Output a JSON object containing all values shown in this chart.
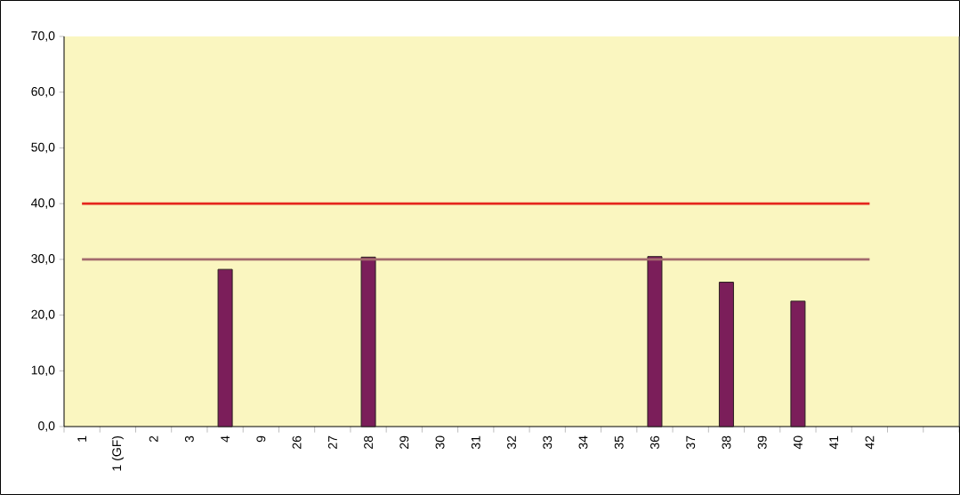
{
  "chart_data": {
    "type": "bar",
    "categories": [
      "1",
      "1 (GF)",
      "2",
      "3",
      "4",
      "9",
      "26",
      "27",
      "28",
      "29",
      "30",
      "31",
      "32",
      "33",
      "34",
      "35",
      "36",
      "37",
      "38",
      "39",
      "40",
      "41",
      "42",
      null,
      null
    ],
    "series": [
      {
        "color": "#7b1e5a",
        "values": [
          null,
          null,
          null,
          null,
          28.2,
          null,
          null,
          null,
          30.4,
          null,
          null,
          null,
          null,
          null,
          null,
          null,
          30.5,
          null,
          25.9,
          null,
          22.5,
          null,
          null,
          null,
          null
        ]
      },
      {
        "type": "line",
        "color": "#e5261c",
        "values": [
          40,
          40,
          40,
          40,
          40,
          40,
          40,
          40,
          40,
          40,
          40,
          40,
          40,
          40,
          40,
          40,
          40,
          40,
          40,
          40,
          40,
          40,
          40,
          null,
          null
        ]
      },
      {
        "type": "line",
        "color": "#a36a6e",
        "values": [
          30,
          30,
          30,
          30,
          30,
          30,
          30,
          30,
          30,
          30,
          30,
          30,
          30,
          30,
          30,
          30,
          30,
          30,
          30,
          30,
          30,
          30,
          30,
          null,
          null
        ]
      }
    ],
    "ylim": [
      0,
      70
    ],
    "yticks": [
      {
        "value": 0,
        "label": "0,0"
      },
      {
        "value": 10,
        "label": "10,0"
      },
      {
        "value": 20,
        "label": "20,0"
      },
      {
        "value": 30,
        "label": "30,0"
      },
      {
        "value": 40,
        "label": "40,0"
      },
      {
        "value": 50,
        "label": "50,0"
      },
      {
        "value": 60,
        "label": "60,0"
      },
      {
        "value": 70,
        "label": "70,0"
      }
    ],
    "grid": false,
    "marker": "none",
    "line_style": "solid"
  }
}
